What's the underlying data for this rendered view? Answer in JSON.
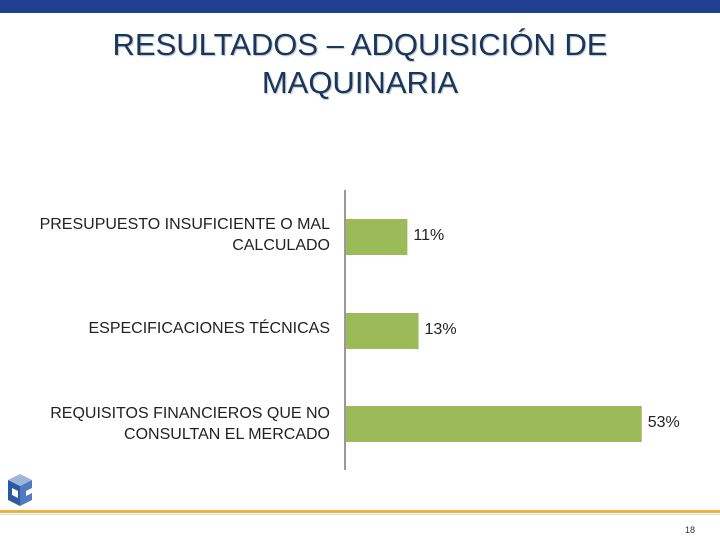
{
  "slide": {
    "title_line1": "RESULTADOS – ADQUISICIÓN DE",
    "title_line2": "MAQUINARIA",
    "page_number": "18"
  },
  "colors": {
    "bar": "#9bbb59",
    "title": "#17375e",
    "top_band": "#1f3f8f",
    "footer_line": "#f0b040"
  },
  "chart_data": {
    "type": "bar",
    "orientation": "horizontal",
    "categories": [
      "PRESUPUESTO INSUFICIENTE O MAL CALCULADO",
      "ESPECIFICACIONES TÉCNICAS",
      "REQUISITOS FINANCIEROS QUE NO CONSULTAN EL MERCADO"
    ],
    "values": [
      11,
      13,
      53
    ],
    "value_labels": [
      "11%",
      "13%",
      "53%"
    ],
    "unit": "%",
    "xlim": [
      0,
      55
    ],
    "grid": false,
    "legend": "none"
  }
}
